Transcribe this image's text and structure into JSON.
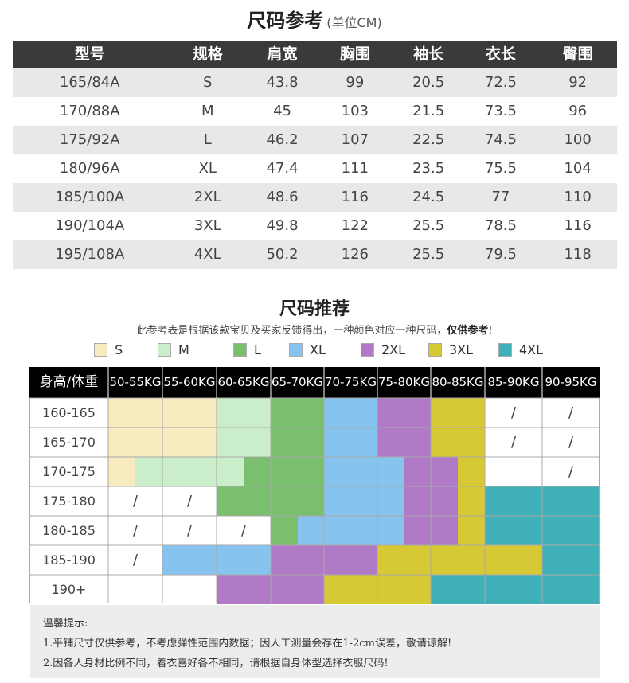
{
  "size_chart": {
    "title": "尺码参考",
    "unit_note": "(单位CM)",
    "headers": [
      "型号",
      "规格",
      "肩宽",
      "胸围",
      "袖长",
      "衣长",
      "臀围"
    ],
    "rows": [
      [
        "165/84A",
        "S",
        "43.8",
        "99",
        "20.5",
        "72.5",
        "92"
      ],
      [
        "170/88A",
        "M",
        "45",
        "103",
        "21.5",
        "73.5",
        "96"
      ],
      [
        "175/92A",
        "L",
        "46.2",
        "107",
        "22.5",
        "74.5",
        "100"
      ],
      [
        "180/96A",
        "XL",
        "47.4",
        "111",
        "23.5",
        "75.5",
        "104"
      ],
      [
        "185/100A",
        "2XL",
        "48.6",
        "116",
        "24.5",
        "77",
        "110"
      ],
      [
        "190/104A",
        "3XL",
        "49.8",
        "122",
        "25.5",
        "78.5",
        "116"
      ],
      [
        "195/108A",
        "4XL",
        "50.2",
        "126",
        "25.5",
        "79.5",
        "118"
      ]
    ]
  },
  "recommendation": {
    "title": "尺码推荐",
    "subtitle_normal": "此参考表是根据该款宝贝及买家反馈得出，一种颜色对应一种尺码，",
    "subtitle_bold": "仅供参考",
    "subtitle_end": "!",
    "legend": [
      {
        "label": "S",
        "color": "#f6ecc0"
      },
      {
        "label": "M",
        "color": "#c9eec9"
      },
      {
        "label": "L",
        "color": "#79bf6e"
      },
      {
        "label": "XL",
        "color": "#86c3ee"
      },
      {
        "label": "2XL",
        "color": "#b07ac7"
      },
      {
        "label": "3XL",
        "color": "#d6c933"
      },
      {
        "label": "4XL",
        "color": "#3fb0b8"
      }
    ],
    "corner_label": "身高/体重",
    "weight_columns": [
      "50-55KG",
      "55-60KG",
      "60-65KG",
      "65-70KG",
      "70-75KG",
      "75-80KG",
      "80-85KG",
      "85-90KG",
      "90-95KG"
    ],
    "height_rows": [
      "160-165",
      "165-170",
      "170-175",
      "175-180",
      "180-185",
      "185-190",
      "190+"
    ],
    "cells": [
      [
        [
          "S"
        ],
        [
          "S"
        ],
        [
          "M"
        ],
        [
          "L"
        ],
        [
          "XL"
        ],
        [
          "2XL"
        ],
        [
          "3XL"
        ],
        [
          "/"
        ],
        [
          "/"
        ]
      ],
      [
        [
          "S"
        ],
        [
          "S"
        ],
        [
          "M"
        ],
        [
          "L"
        ],
        [
          "XL"
        ],
        [
          "2XL"
        ],
        [
          "3XL"
        ],
        [
          "/"
        ],
        [
          "/"
        ]
      ],
      [
        [
          "S",
          "M"
        ],
        [
          "M"
        ],
        [
          "M",
          "L"
        ],
        [
          "L"
        ],
        [
          "XL"
        ],
        [
          "XL",
          "2XL"
        ],
        [
          "2XL",
          "3XL"
        ],
        [
          "-"
        ],
        [
          "/"
        ]
      ],
      [
        [
          "/"
        ],
        [
          "/"
        ],
        [
          "L"
        ],
        [
          "L"
        ],
        [
          "XL"
        ],
        [
          "XL",
          "2XL"
        ],
        [
          "2XL",
          "3XL"
        ],
        [
          "4XL"
        ],
        [
          "4XL"
        ]
      ],
      [
        [
          "/"
        ],
        [
          "/"
        ],
        [
          "/"
        ],
        [
          "L",
          "XL"
        ],
        [
          "XL"
        ],
        [
          "XL",
          "2XL"
        ],
        [
          "2XL",
          "3XL"
        ],
        [
          "4XL"
        ],
        [
          "4XL"
        ]
      ],
      [
        [
          "/"
        ],
        [
          "XL"
        ],
        [
          "XL"
        ],
        [
          "2XL"
        ],
        [
          "2XL"
        ],
        [
          "3XL"
        ],
        [
          "3XL"
        ],
        [
          "3XL"
        ],
        [
          "4XL"
        ]
      ],
      [
        [
          "-"
        ],
        [
          "-"
        ],
        [
          "2XL"
        ],
        [
          "2XL"
        ],
        [
          "3XL"
        ],
        [
          "3XL"
        ],
        [
          "4XL"
        ],
        [
          "4XL"
        ],
        [
          "4XL"
        ]
      ]
    ]
  },
  "notes": {
    "heading": "温馨提示:",
    "line1": "1.平铺尺寸仅供参考，不考虑弹性范围内数据；因人工测量会存在1-2cm误差，敬请谅解!",
    "line2": "2.因各人身材比例不同，着衣喜好各不相同，请根据自身体型选择衣服尺码!"
  }
}
